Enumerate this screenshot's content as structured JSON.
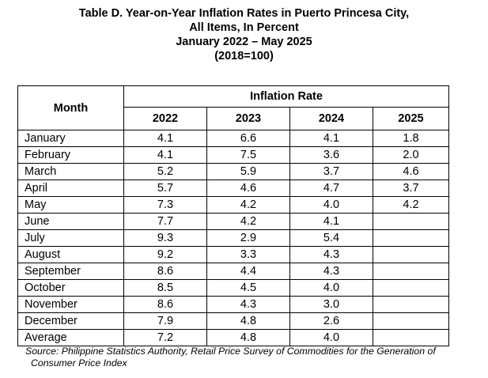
{
  "title": {
    "line1": "Table D. Year-on-Year Inflation Rates in Puerto Princesa City,",
    "line2": "All Items, In Percent",
    "line3": "January 2022 – May 2025",
    "line4": "(2018=100)"
  },
  "table": {
    "month_header": "Month",
    "group_header": "Inflation Rate",
    "years": [
      "2022",
      "2023",
      "2024",
      "2025"
    ],
    "rows": [
      {
        "month": "January",
        "values": [
          "4.1",
          "6.6",
          "4.1",
          "1.8"
        ]
      },
      {
        "month": "February",
        "values": [
          "4.1",
          "7.5",
          "3.6",
          "2.0"
        ]
      },
      {
        "month": "March",
        "values": [
          "5.2",
          "5.9",
          "3.7",
          "4.6"
        ]
      },
      {
        "month": "April",
        "values": [
          "5.7",
          "4.6",
          "4.7",
          "3.7"
        ]
      },
      {
        "month": "May",
        "values": [
          "7.3",
          "4.2",
          "4.0",
          "4.2"
        ]
      },
      {
        "month": "June",
        "values": [
          "7.7",
          "4.2",
          "4.1",
          ""
        ]
      },
      {
        "month": "July",
        "values": [
          "9.3",
          "2.9",
          "5.4",
          ""
        ]
      },
      {
        "month": "August",
        "values": [
          "9.2",
          "3.3",
          "4.3",
          ""
        ]
      },
      {
        "month": "September",
        "values": [
          "8.6",
          "4.4",
          "4.3",
          ""
        ]
      },
      {
        "month": "October",
        "values": [
          "8.5",
          "4.5",
          "4.0",
          ""
        ]
      },
      {
        "month": "November",
        "values": [
          "8.6",
          "4.3",
          "3.0",
          ""
        ]
      },
      {
        "month": "December",
        "values": [
          "7.9",
          "4.8",
          "2.6",
          ""
        ]
      },
      {
        "month": "Average",
        "values": [
          "7.2",
          "4.8",
          "4.0",
          ""
        ]
      }
    ]
  },
  "source": {
    "line1": "Source: Philippine Statistics Authority, Retail Price Survey of Commodities for the Generation of",
    "line2": "Consumer Price Index"
  }
}
